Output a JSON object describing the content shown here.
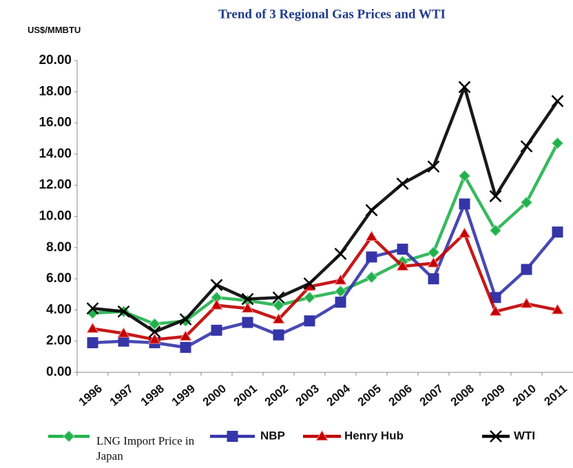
{
  "chart_data": {
    "type": "line",
    "title": "Trend of 3 Regional Gas Prices and WTI",
    "y_label": "US$/MMBTU",
    "categories": [
      "1996",
      "1997",
      "1998",
      "1999",
      "2000",
      "2001",
      "2002",
      "2003",
      "2004",
      "2005",
      "2006",
      "2007",
      "2008",
      "2009",
      "2010",
      "2011"
    ],
    "series": [
      {
        "name": "LNG Import Price in Japan",
        "color": "#22b14c",
        "marker": "diamond",
        "values": [
          3.8,
          3.9,
          3.1,
          3.3,
          4.8,
          4.6,
          4.3,
          4.8,
          5.2,
          6.1,
          7.1,
          7.7,
          12.6,
          9.1,
          10.9,
          14.7
        ]
      },
      {
        "name": "NBP",
        "color": "#3535a8",
        "marker": "square",
        "values": [
          1.9,
          2.0,
          1.9,
          1.6,
          2.7,
          3.2,
          2.4,
          3.3,
          4.5,
          7.4,
          7.9,
          6.0,
          10.8,
          4.8,
          6.6,
          9.0
        ]
      },
      {
        "name": "Henry Hub",
        "color": "#c00000",
        "marker": "triangle",
        "values": [
          2.8,
          2.5,
          2.1,
          2.3,
          4.3,
          4.1,
          3.4,
          5.5,
          5.9,
          8.7,
          6.8,
          7.0,
          8.9,
          3.9,
          4.4,
          4.0
        ]
      },
      {
        "name": "WTI",
        "color": "#000000",
        "marker": "x",
        "values": [
          4.1,
          3.9,
          2.6,
          3.4,
          5.6,
          4.7,
          4.8,
          5.7,
          7.6,
          10.4,
          12.1,
          13.2,
          18.3,
          11.3,
          14.5,
          17.4
        ]
      }
    ],
    "ylim": [
      0,
      20
    ],
    "yticks": [
      {
        "value": 0,
        "label": "0.00"
      },
      {
        "value": 2,
        "label": "2.00"
      },
      {
        "value": 4,
        "label": "4.00"
      },
      {
        "value": 6,
        "label": "6.00"
      },
      {
        "value": 8,
        "label": "8.00"
      },
      {
        "value": 10,
        "label": "10.00"
      },
      {
        "value": 12,
        "label": "12.00"
      },
      {
        "value": 14,
        "label": "14.00"
      },
      {
        "value": 16,
        "label": "16.00"
      },
      {
        "value": 18,
        "label": "18.00"
      },
      {
        "value": 20,
        "label": "20.00"
      }
    ],
    "grid": false
  }
}
